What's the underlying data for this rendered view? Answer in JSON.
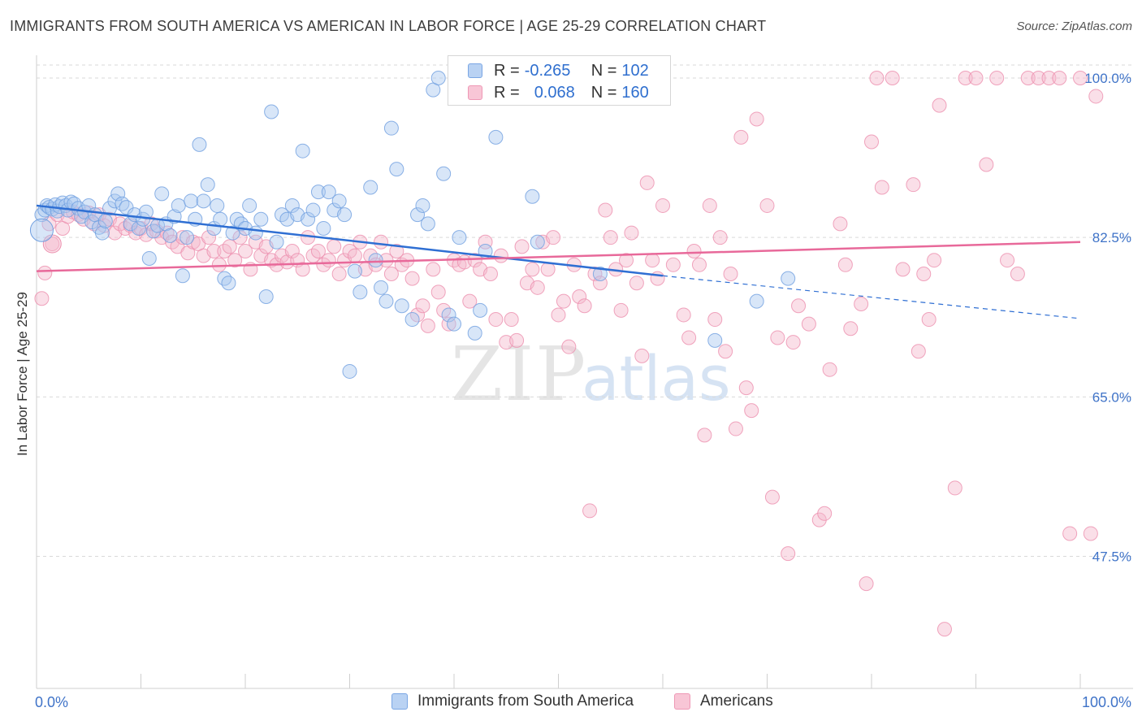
{
  "header": {
    "title": "IMMIGRANTS FROM SOUTH AMERICA VS AMERICAN IN LABOR FORCE | AGE 25-29 CORRELATION CHART",
    "source": "Source: ZipAtlas.com"
  },
  "watermark": {
    "zip": "ZIP",
    "atlas": "atlas"
  },
  "legend": {
    "series1": {
      "r_label": "R =",
      "r_value": "-0.265",
      "n_label": "N =",
      "n_value": "102"
    },
    "series2": {
      "r_label": "R =",
      "r_value": "0.068",
      "n_label": "N =",
      "n_value": "160"
    }
  },
  "colors": {
    "blue_fill": "#a9c8f0",
    "blue_stroke": "#6f9fe0",
    "blue_line": "#2f6fd3",
    "pink_fill": "#f5b9cc",
    "pink_stroke": "#ec8fae",
    "pink_line": "#e8699a",
    "axis_text": "#3f73c8",
    "grid": "#d9d9d9"
  },
  "chart_data": {
    "type": "scatter",
    "title": "IMMIGRANTS FROM SOUTH AMERICA VS AMERICAN IN LABOR FORCE | AGE 25-29 CORRELATION CHART",
    "xlabel": "",
    "ylabel": "In Labor Force | Age 25-29",
    "xlim": [
      0,
      100
    ],
    "ylim": [
      33,
      102.5
    ],
    "x_tick_labels": [
      "0.0%",
      "100.0%"
    ],
    "y_ticks": [
      100.0,
      82.5,
      65.0,
      47.5
    ],
    "y_tick_labels": [
      "100.0%",
      "82.5%",
      "65.0%",
      "47.5%"
    ],
    "grid": true,
    "legend_position": "bottom",
    "series": [
      {
        "name": "Immigrants from South America",
        "r": -0.265,
        "n": 102,
        "trend": {
          "x0": 0,
          "y0": 86.0,
          "x1": 60,
          "y1": 78.3,
          "dash_to_x": 100,
          "dash_to_y": 73.6
        },
        "points": [
          [
            0.5,
            85.0
          ],
          [
            0.8,
            85.5
          ],
          [
            1.0,
            86.0
          ],
          [
            1.2,
            85.8
          ],
          [
            1.5,
            85.6
          ],
          [
            1.8,
            86.1
          ],
          [
            2.0,
            85.4
          ],
          [
            2.2,
            85.9
          ],
          [
            2.5,
            86.3
          ],
          [
            2.8,
            86.0
          ],
          [
            3.0,
            85.5
          ],
          [
            3.3,
            86.4
          ],
          [
            3.6,
            86.2
          ],
          [
            4.0,
            85.7
          ],
          [
            4.3,
            84.8
          ],
          [
            4.6,
            85.3
          ],
          [
            5.0,
            86.0
          ],
          [
            5.3,
            84.2
          ],
          [
            5.6,
            85.0
          ],
          [
            6.0,
            83.6
          ],
          [
            6.3,
            83.0
          ],
          [
            6.6,
            84.3
          ],
          [
            7.0,
            85.7
          ],
          [
            7.5,
            86.5
          ],
          [
            7.8,
            87.3
          ],
          [
            8.2,
            86.2
          ],
          [
            8.6,
            85.8
          ],
          [
            9.0,
            84.0
          ],
          [
            9.4,
            85.0
          ],
          [
            9.8,
            83.5
          ],
          [
            10.2,
            84.5
          ],
          [
            10.5,
            85.3
          ],
          [
            10.8,
            80.2
          ],
          [
            11.2,
            83.2
          ],
          [
            11.6,
            83.8
          ],
          [
            12.0,
            87.3
          ],
          [
            12.4,
            84.0
          ],
          [
            12.8,
            82.7
          ],
          [
            13.2,
            84.8
          ],
          [
            13.6,
            86.0
          ],
          [
            14.0,
            78.3
          ],
          [
            14.4,
            82.5
          ],
          [
            14.8,
            86.5
          ],
          [
            15.2,
            84.5
          ],
          [
            15.6,
            92.7
          ],
          [
            16.0,
            86.5
          ],
          [
            16.4,
            88.3
          ],
          [
            17.0,
            83.5
          ],
          [
            17.3,
            86.0
          ],
          [
            17.6,
            84.5
          ],
          [
            18.0,
            78.0
          ],
          [
            18.4,
            77.5
          ],
          [
            18.8,
            83.0
          ],
          [
            19.2,
            84.5
          ],
          [
            19.6,
            84.0
          ],
          [
            20.0,
            83.5
          ],
          [
            20.4,
            86.0
          ],
          [
            21.0,
            83.0
          ],
          [
            21.5,
            84.5
          ],
          [
            22.0,
            76.0
          ],
          [
            22.5,
            96.3
          ],
          [
            23.0,
            82.0
          ],
          [
            23.5,
            85.0
          ],
          [
            24.0,
            84.5
          ],
          [
            24.5,
            86.0
          ],
          [
            25.0,
            85.0
          ],
          [
            25.5,
            92.0
          ],
          [
            26.0,
            84.5
          ],
          [
            26.5,
            85.5
          ],
          [
            27.0,
            87.5
          ],
          [
            27.5,
            83.5
          ],
          [
            28.0,
            87.5
          ],
          [
            28.5,
            85.5
          ],
          [
            29.0,
            86.5
          ],
          [
            29.5,
            85.0
          ],
          [
            30.0,
            67.8
          ],
          [
            30.5,
            78.8
          ],
          [
            31.0,
            76.5
          ],
          [
            32.0,
            88.0
          ],
          [
            32.5,
            80.0
          ],
          [
            33.0,
            77.0
          ],
          [
            33.5,
            75.5
          ],
          [
            34.0,
            94.5
          ],
          [
            34.5,
            90.0
          ],
          [
            35.0,
            75.0
          ],
          [
            36.0,
            73.5
          ],
          [
            36.5,
            85.0
          ],
          [
            37.0,
            86.0
          ],
          [
            37.5,
            84.0
          ],
          [
            38.0,
            98.7
          ],
          [
            38.5,
            100.0
          ],
          [
            39.0,
            89.5
          ],
          [
            39.5,
            74.0
          ],
          [
            40.0,
            73.0
          ],
          [
            40.5,
            82.5
          ],
          [
            41.0,
            99.9
          ],
          [
            42.0,
            72.0
          ],
          [
            42.5,
            74.5
          ],
          [
            43.0,
            81.0
          ],
          [
            44.0,
            93.5
          ],
          [
            48.0,
            82.0
          ],
          [
            54.0,
            78.5
          ],
          [
            65.0,
            71.2
          ],
          [
            69.0,
            75.5
          ],
          [
            72.0,
            78.0
          ],
          [
            47.5,
            87.0
          ]
        ]
      },
      {
        "name": "Americans",
        "r": 0.068,
        "n": 160,
        "trend": {
          "x0": 0,
          "y0": 78.8,
          "x1": 100,
          "y1": 82.0
        },
        "points": [
          [
            0.5,
            75.8
          ],
          [
            0.8,
            78.6
          ],
          [
            1.2,
            84.0
          ],
          [
            1.5,
            81.8
          ],
          [
            2.0,
            85.0
          ],
          [
            2.5,
            83.5
          ],
          [
            3.0,
            84.8
          ],
          [
            3.5,
            85.3
          ],
          [
            4.0,
            85.0
          ],
          [
            4.5,
            84.5
          ],
          [
            5.0,
            85.2
          ],
          [
            5.5,
            84.0
          ],
          [
            6.0,
            85.0
          ],
          [
            6.5,
            83.8
          ],
          [
            7.0,
            84.5
          ],
          [
            7.5,
            83.0
          ],
          [
            8.0,
            84.0
          ],
          [
            8.5,
            83.5
          ],
          [
            9.0,
            83.8
          ],
          [
            9.5,
            83.0
          ],
          [
            10.0,
            83.5
          ],
          [
            10.5,
            82.8
          ],
          [
            11.0,
            84.0
          ],
          [
            11.5,
            83.2
          ],
          [
            12.0,
            82.5
          ],
          [
            12.5,
            83.0
          ],
          [
            13.0,
            82.0
          ],
          [
            13.5,
            81.5
          ],
          [
            14.0,
            82.5
          ],
          [
            14.5,
            80.8
          ],
          [
            15.0,
            82.0
          ],
          [
            15.5,
            81.8
          ],
          [
            16.0,
            80.5
          ],
          [
            16.5,
            82.5
          ],
          [
            17.0,
            81.0
          ],
          [
            17.5,
            79.5
          ],
          [
            18.0,
            81.0
          ],
          [
            18.5,
            81.5
          ],
          [
            19.0,
            80.0
          ],
          [
            19.5,
            82.5
          ],
          [
            20.0,
            81.0
          ],
          [
            20.5,
            79.0
          ],
          [
            21.0,
            82.0
          ],
          [
            21.5,
            80.5
          ],
          [
            22.0,
            81.5
          ],
          [
            22.5,
            80.0
          ],
          [
            23.0,
            79.5
          ],
          [
            23.5,
            80.5
          ],
          [
            24.0,
            79.8
          ],
          [
            24.5,
            81.0
          ],
          [
            25.0,
            80.0
          ],
          [
            25.5,
            79.0
          ],
          [
            26.0,
            82.5
          ],
          [
            26.5,
            80.5
          ],
          [
            27.0,
            81.0
          ],
          [
            27.5,
            79.5
          ],
          [
            28.0,
            80.0
          ],
          [
            28.5,
            81.5
          ],
          [
            29.0,
            78.5
          ],
          [
            29.5,
            80.0
          ],
          [
            30.0,
            81.0
          ],
          [
            30.5,
            80.5
          ],
          [
            31.0,
            82.0
          ],
          [
            31.5,
            79.0
          ],
          [
            32.0,
            80.5
          ],
          [
            32.5,
            79.5
          ],
          [
            33.0,
            82.0
          ],
          [
            33.5,
            80.0
          ],
          [
            34.0,
            78.5
          ],
          [
            34.5,
            81.0
          ],
          [
            35.0,
            79.5
          ],
          [
            35.5,
            80.0
          ],
          [
            36.0,
            78.0
          ],
          [
            36.5,
            74.0
          ],
          [
            37.0,
            75.0
          ],
          [
            37.5,
            72.8
          ],
          [
            38.0,
            79.0
          ],
          [
            38.5,
            76.5
          ],
          [
            39.0,
            74.5
          ],
          [
            39.5,
            73.0
          ],
          [
            40.0,
            80.0
          ],
          [
            40.5,
            79.5
          ],
          [
            41.0,
            79.8
          ],
          [
            41.5,
            75.5
          ],
          [
            42.0,
            80.0
          ],
          [
            42.5,
            79.0
          ],
          [
            43.0,
            82.0
          ],
          [
            43.5,
            78.5
          ],
          [
            44.0,
            73.5
          ],
          [
            44.5,
            80.5
          ],
          [
            45.0,
            71.0
          ],
          [
            45.5,
            73.5
          ],
          [
            46.0,
            71.2
          ],
          [
            46.5,
            81.5
          ],
          [
            47.0,
            77.5
          ],
          [
            47.5,
            79.0
          ],
          [
            48.0,
            77.0
          ],
          [
            48.5,
            82.0
          ],
          [
            49.0,
            79.0
          ],
          [
            49.5,
            82.5
          ],
          [
            50.0,
            74.0
          ],
          [
            50.5,
            75.5
          ],
          [
            51.0,
            70.5
          ],
          [
            51.5,
            79.5
          ],
          [
            52.0,
            76.0
          ],
          [
            52.5,
            75.0
          ],
          [
            53.0,
            52.5
          ],
          [
            53.5,
            78.5
          ],
          [
            54.0,
            77.5
          ],
          [
            54.5,
            85.5
          ],
          [
            55.0,
            82.5
          ],
          [
            55.5,
            79.0
          ],
          [
            56.0,
            74.5
          ],
          [
            56.5,
            80.0
          ],
          [
            57.0,
            83.0
          ],
          [
            57.5,
            77.5
          ],
          [
            58.0,
            69.5
          ],
          [
            58.5,
            88.5
          ],
          [
            59.0,
            80.0
          ],
          [
            59.5,
            78.0
          ],
          [
            60.0,
            86.0
          ],
          [
            61.0,
            79.5
          ],
          [
            62.0,
            74.0
          ],
          [
            62.5,
            71.5
          ],
          [
            63.0,
            81.0
          ],
          [
            63.5,
            79.5
          ],
          [
            64.0,
            60.8
          ],
          [
            64.5,
            86.0
          ],
          [
            65.0,
            73.5
          ],
          [
            65.5,
            82.5
          ],
          [
            66.0,
            70.0
          ],
          [
            66.5,
            78.5
          ],
          [
            67.0,
            61.5
          ],
          [
            67.5,
            93.5
          ],
          [
            68.0,
            66.0
          ],
          [
            68.5,
            63.5
          ],
          [
            69.0,
            95.5
          ],
          [
            70.0,
            86.0
          ],
          [
            70.5,
            54.0
          ],
          [
            71.0,
            71.5
          ],
          [
            72.0,
            47.8
          ],
          [
            72.5,
            71.0
          ],
          [
            73.0,
            75.0
          ],
          [
            74.0,
            73.0
          ],
          [
            75.0,
            51.5
          ],
          [
            75.5,
            52.2
          ],
          [
            76.0,
            68.0
          ],
          [
            77.0,
            84.0
          ],
          [
            77.5,
            79.5
          ],
          [
            78.0,
            72.5
          ],
          [
            79.0,
            75.2
          ],
          [
            79.5,
            44.5
          ],
          [
            80.0,
            93.0
          ],
          [
            80.5,
            100.0
          ],
          [
            81.0,
            88.0
          ],
          [
            82.0,
            100.0
          ],
          [
            83.0,
            79.0
          ],
          [
            84.0,
            88.3
          ],
          [
            85.0,
            78.5
          ],
          [
            86.0,
            80.0
          ],
          [
            87.0,
            39.5
          ],
          [
            88.0,
            55.0
          ],
          [
            89.0,
            100.0
          ],
          [
            90.0,
            100.0
          ],
          [
            91.0,
            90.5
          ],
          [
            92.0,
            100.0
          ],
          [
            93.0,
            80.0
          ],
          [
            94.0,
            78.5
          ],
          [
            95.0,
            100.0
          ],
          [
            96.0,
            100.0
          ],
          [
            97.0,
            100.0
          ],
          [
            98.0,
            100.0
          ],
          [
            99.0,
            50.0
          ],
          [
            100.0,
            100.0
          ],
          [
            101.0,
            50.0
          ],
          [
            101.5,
            98.0
          ],
          [
            84.5,
            70.0
          ],
          [
            85.5,
            73.5
          ],
          [
            86.5,
            97.0
          ]
        ]
      }
    ]
  },
  "bottom_legend": {
    "series1": "Immigrants from South America",
    "series2": "Americans"
  }
}
